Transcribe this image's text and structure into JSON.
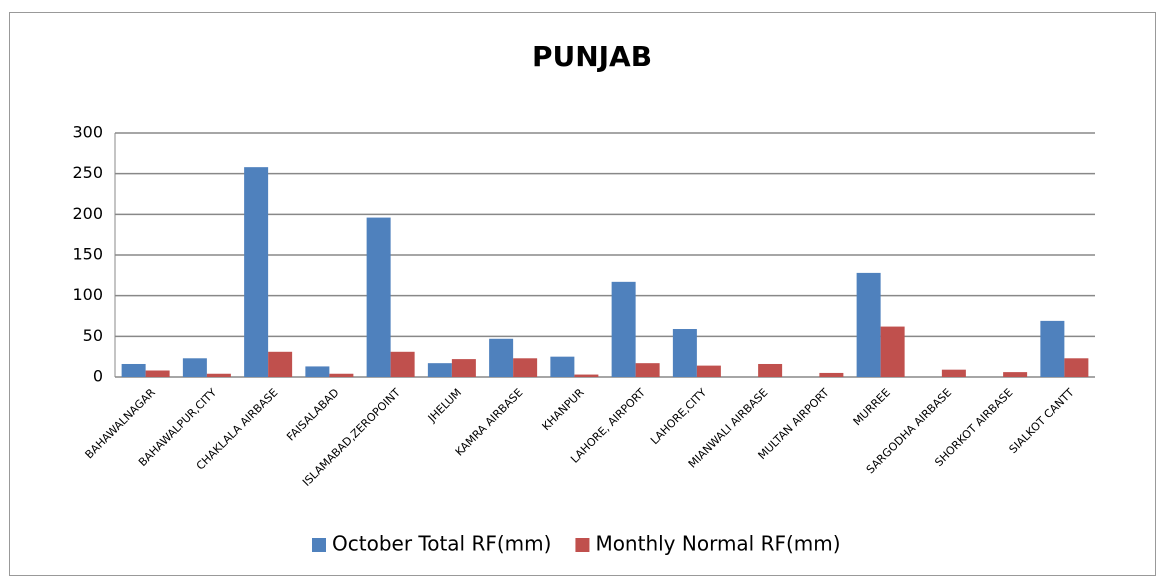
{
  "chart_data": {
    "type": "bar",
    "title": "PUNJAB",
    "categories": [
      "BAHAWALNAGAR",
      "BAHAWALPUR,CITY",
      "CHAKLALA AIRBASE",
      "FAISALABAD",
      "ISLAMABAD,ZEROPOINT",
      "JHELUM",
      "KAMRA AIRBASE",
      "KHANPUR",
      "LAHORE, AIRPORT",
      "LAHORE,CITY",
      "MIANWALI AIRBASE",
      "MULTAN AIRPORT",
      "MURREE",
      "SARGODHA AIRBASE",
      "SHORKOT AIRBASE",
      "SIALKOT CANTT"
    ],
    "series": [
      {
        "name": "October Total RF(mm)",
        "color": "#4f81bd",
        "values": [
          16,
          23,
          258,
          13,
          196,
          17,
          47,
          25,
          117,
          59,
          0,
          0,
          128,
          0,
          0,
          69
        ]
      },
      {
        "name": "Monthly Normal RF(mm)",
        "color": "#c0504d",
        "values": [
          8,
          4,
          31,
          4,
          31,
          22,
          23,
          3,
          17,
          14,
          16,
          5,
          62,
          9,
          6,
          23
        ]
      }
    ],
    "ylim": [
      0,
      300
    ],
    "yticks": [
      0,
      50,
      100,
      150,
      200,
      250,
      300
    ],
    "grid": true,
    "legend": "bottom"
  }
}
